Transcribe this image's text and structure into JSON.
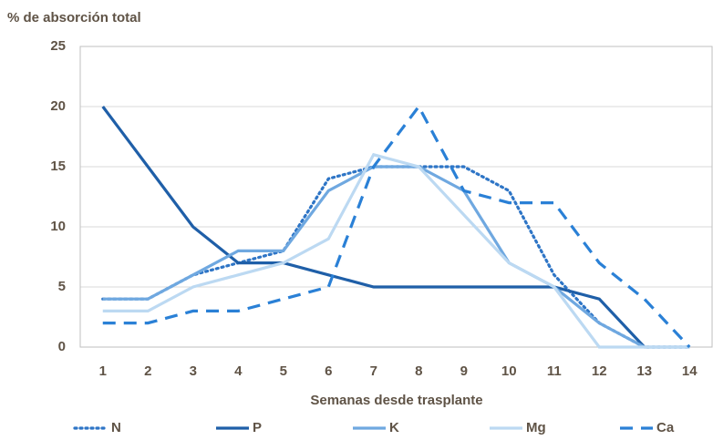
{
  "chart_data": {
    "type": "line",
    "title": "% de absorción total",
    "x_label": "Semanas desde trasplante",
    "x": [
      1,
      2,
      3,
      4,
      5,
      6,
      7,
      8,
      9,
      10,
      11,
      12,
      13,
      14
    ],
    "xlim": [
      0.5,
      14.5
    ],
    "ylim": [
      0,
      25
    ],
    "yticks": [
      0,
      5,
      10,
      15,
      20,
      25
    ],
    "grid": true,
    "legend": "bottom",
    "series": [
      {
        "name": "N",
        "color": "#2e75c6",
        "style": "dotted",
        "values": [
          4,
          4,
          6,
          7,
          8,
          14,
          15,
          15,
          15,
          13,
          6,
          2,
          0,
          0
        ]
      },
      {
        "name": "P",
        "color": "#1f5fa8",
        "style": "solid",
        "values": [
          20,
          15,
          10,
          7,
          7,
          6,
          5,
          5,
          5,
          5,
          5,
          4,
          0,
          null
        ]
      },
      {
        "name": "K",
        "color": "#6fa8e0",
        "style": "solid",
        "values": [
          4,
          4,
          6,
          8,
          8,
          13,
          15,
          15,
          13,
          7,
          5,
          2,
          0,
          0
        ]
      },
      {
        "name": "Mg",
        "color": "#bcd9f2",
        "style": "solid",
        "values": [
          3,
          3,
          5,
          6,
          7,
          9,
          16,
          15,
          11,
          7,
          5,
          0,
          0,
          0
        ]
      },
      {
        "name": "Ca",
        "color": "#2a80d6",
        "style": "dashed",
        "values": [
          2,
          2,
          3,
          3,
          4,
          5,
          15,
          20,
          13,
          12,
          12,
          7,
          4,
          0
        ]
      }
    ]
  }
}
